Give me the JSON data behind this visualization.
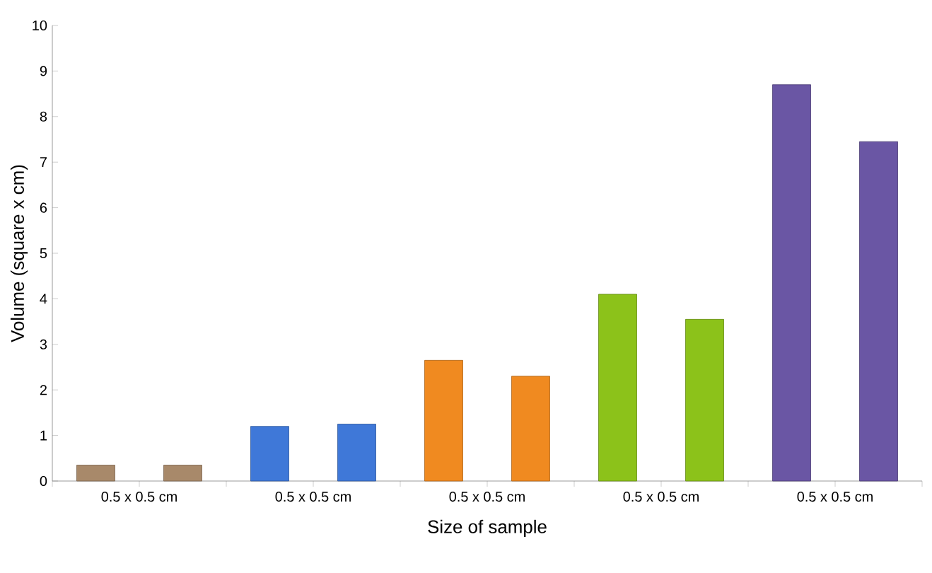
{
  "chart_data": {
    "type": "bar",
    "xlabel": "Size of sample",
    "ylabel": "Volume (square x cm)",
    "categories": [
      "0.5 x 0.5 cm",
      "0.5 x 0.5 cm",
      "0.5 x 0.5 cm",
      "0.5 x 0.5 cm",
      "0.5 x 0.5 cm"
    ],
    "series": [
      {
        "colors": [
          "#a8896a",
          "#3f78d8",
          "#f08a20",
          "#8cc21a",
          "#6a56a4"
        ],
        "values": [
          0.35,
          1.2,
          2.65,
          4.1,
          8.7
        ]
      },
      {
        "colors": [
          "#a8896a",
          "#3f78d8",
          "#f08a20",
          "#8cc21a",
          "#6a56a4"
        ],
        "values": [
          0.35,
          1.25,
          2.3,
          3.55,
          7.45
        ]
      }
    ],
    "ylim": [
      0,
      10
    ],
    "yticks": [
      0,
      1,
      2,
      3,
      4,
      5,
      6,
      7,
      8,
      9,
      10
    ]
  }
}
